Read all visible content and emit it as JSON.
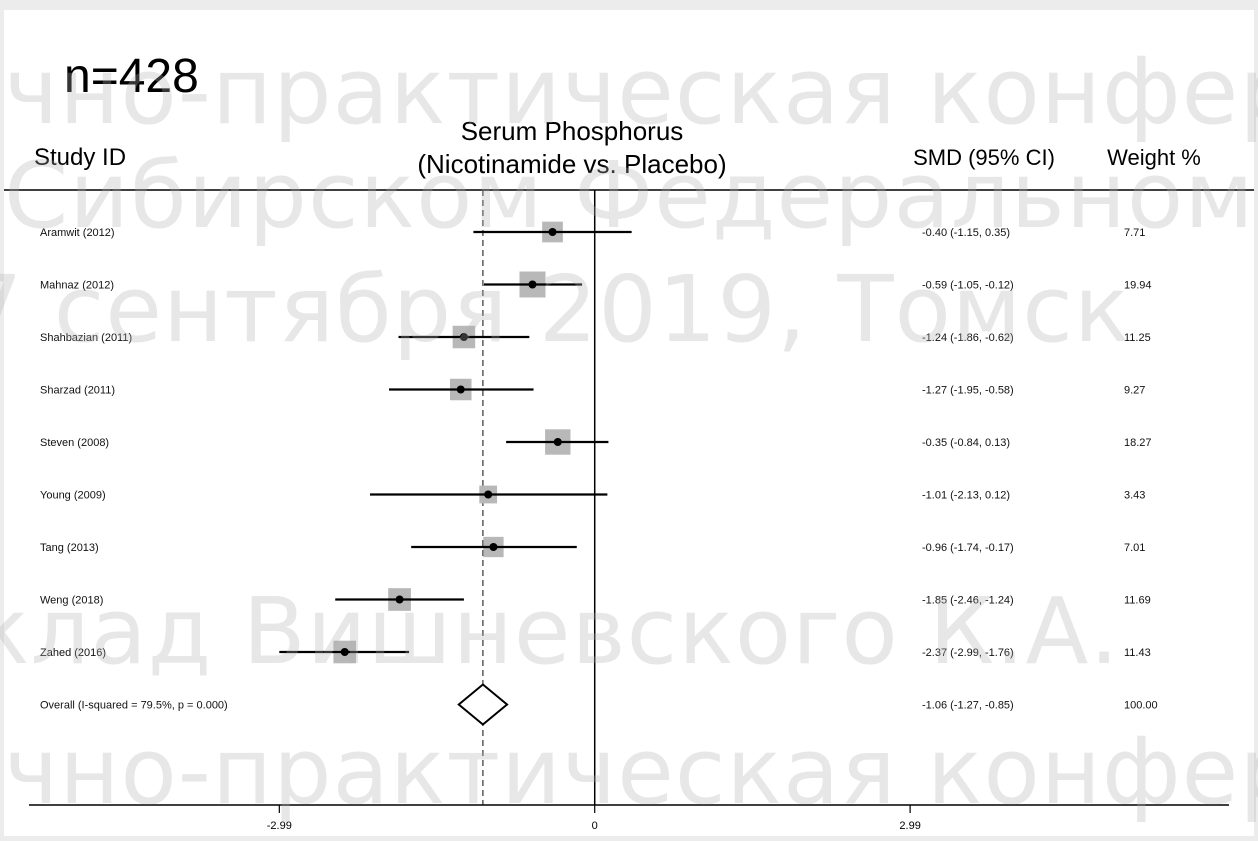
{
  "sample_size_label": "n=428",
  "headers": {
    "study_id": "Study ID",
    "title_line1": "Serum Phosphorus",
    "title_line2": "(Nicotinamide vs. Placebo)",
    "smd": "SMD (95% CI)",
    "weight": "Weight %"
  },
  "watermark_lines": [
    "чно-практическая конференц",
    "Сибирском Федеральном окру",
    "7 сентября 2019, Томск",
    "клад Вишневского К.А.",
    "чно-практическая конференц"
  ],
  "colors": {
    "axis": "#000000",
    "weight_box": "#b8b8b8",
    "point": "#000000",
    "ref_line": "#333333"
  },
  "chart_data": {
    "type": "forest",
    "x_ticks": [
      {
        "value": -2.99,
        "label": "-2.99"
      },
      {
        "value": 0,
        "label": "0"
      },
      {
        "value": 2.99,
        "label": "2.99"
      }
    ],
    "xlim": [
      -5.6,
      6.25
    ],
    "null_line": 0,
    "pooled_ref_line": -1.06,
    "studies": [
      {
        "study": "Aramwit (2012)",
        "smd": -0.4,
        "lo": -1.15,
        "hi": 0.35,
        "ci_text": "-0.40 (-1.15, 0.35)",
        "weight": 7.71,
        "weight_text": "7.71"
      },
      {
        "study": "Mahnaz (2012)",
        "smd": -0.59,
        "lo": -1.05,
        "hi": -0.12,
        "ci_text": "-0.59 (-1.05, -0.12)",
        "weight": 19.94,
        "weight_text": "19.94"
      },
      {
        "study": "Shahbazian (2011)",
        "smd": -1.24,
        "lo": -1.86,
        "hi": -0.62,
        "ci_text": "-1.24 (-1.86, -0.62)",
        "weight": 11.25,
        "weight_text": "11.25"
      },
      {
        "study": "Sharzad (2011)",
        "smd": -1.27,
        "lo": -1.95,
        "hi": -0.58,
        "ci_text": "-1.27 (-1.95, -0.58)",
        "weight": 9.27,
        "weight_text": "9.27"
      },
      {
        "study": "Steven (2008)",
        "smd": -0.35,
        "lo": -0.84,
        "hi": 0.13,
        "ci_text": "-0.35 (-0.84, 0.13)",
        "weight": 18.27,
        "weight_text": "18.27"
      },
      {
        "study": "Young (2009)",
        "smd": -1.01,
        "lo": -2.13,
        "hi": 0.12,
        "ci_text": "-1.01 (-2.13, 0.12)",
        "weight": 3.43,
        "weight_text": "3.43"
      },
      {
        "study": "Tang (2013)",
        "smd": -0.96,
        "lo": -1.74,
        "hi": -0.17,
        "ci_text": "-0.96 (-1.74, -0.17)",
        "weight": 7.01,
        "weight_text": "7.01"
      },
      {
        "study": "Weng (2018)",
        "smd": -1.85,
        "lo": -2.46,
        "hi": -1.24,
        "ci_text": "-1.85 (-2.46, -1.24)",
        "weight": 11.69,
        "weight_text": "11.69"
      },
      {
        "study": "Zahed (2016)",
        "smd": -2.37,
        "lo": -2.99,
        "hi": -1.76,
        "ci_text": "-2.37 (-2.99, -1.76)",
        "weight": 11.43,
        "weight_text": "11.43"
      }
    ],
    "overall": {
      "label": "Overall (I-squared = 79.5%, p = 0.000)",
      "smd": -1.06,
      "lo": -1.27,
      "hi": -0.85,
      "ci_text": "-1.06 (-1.27, -0.85)",
      "weight_text": "100.00"
    }
  }
}
